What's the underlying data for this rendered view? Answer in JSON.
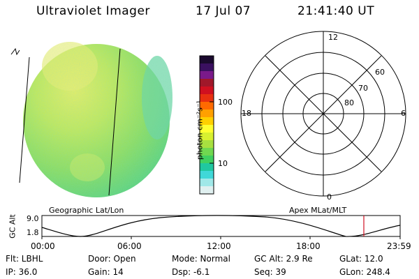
{
  "header": {
    "title": "Ultraviolet Imager",
    "date": "17 Jul 07",
    "time": "21:41:40 UT"
  },
  "colorbar": {
    "unit_label": "photon cm⁻²s⁻¹",
    "tick_100": "100",
    "tick_10": "10",
    "colors": [
      "#1a0a2e",
      "#3a1060",
      "#7a1a8a",
      "#a0182a",
      "#d01020",
      "#e83010",
      "#ff6a00",
      "#ffa000",
      "#ffd000",
      "#ffff30",
      "#d8f030",
      "#a8e040",
      "#70d850",
      "#40d060",
      "#20c8a0",
      "#40d8d8",
      "#a0e8e8",
      "#e0f0f0"
    ]
  },
  "polar": {
    "mlt_top": "12",
    "mlt_left": "18",
    "mlt_right": "6",
    "mlt_bottom": "0",
    "lat_60": "60",
    "lat_70": "70",
    "lat_80": "80"
  },
  "timeline": {
    "left_title": "Geographic Lat/Lon",
    "right_title": "Apex MLat/MLT",
    "axis_label": "GC Alt",
    "y_max": "9.0",
    "y_min": "1.8",
    "times": [
      "00:00",
      "06:00",
      "12:00",
      "18:00",
      "23:59"
    ]
  },
  "info": {
    "row1": {
      "filter": "Flt: LBHL",
      "door": "Door: Open",
      "mode": "Mode: Normal",
      "gc_alt": "GC Alt: 2.9 Re",
      "glat": "GLat:  12.0"
    },
    "row2": {
      "ip": "IP: 36.0",
      "gain": "Gain: 14",
      "dsp": "Dsp:    -6.1",
      "seq": "Seq: 39",
      "glon": "GLon: 248.4"
    }
  }
}
